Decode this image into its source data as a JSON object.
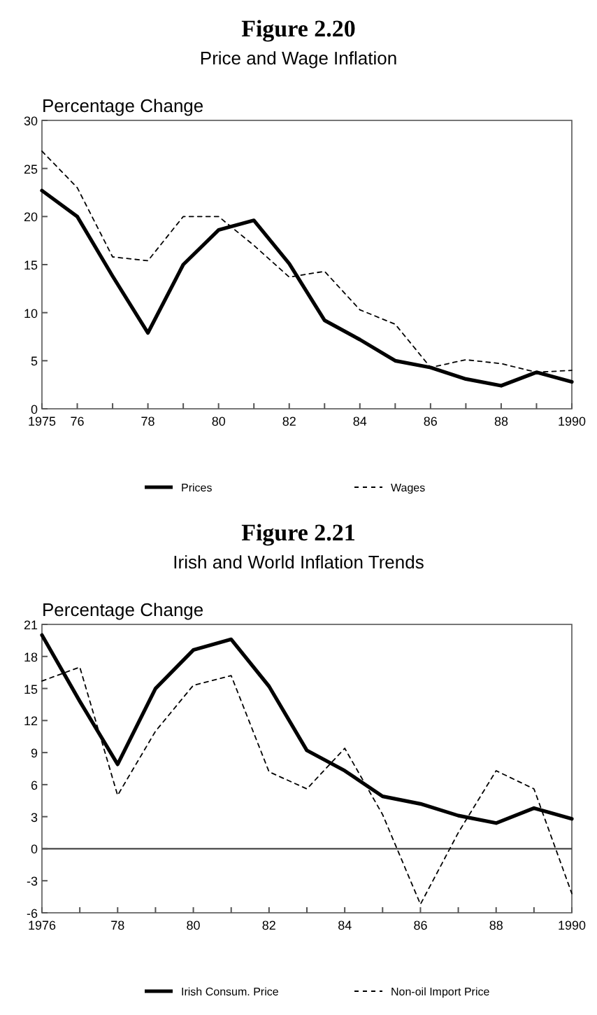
{
  "chart_data": [
    {
      "type": "line",
      "title": "Figure 2.20",
      "subtitle": "Price and Wage Inflation",
      "ylabel": "Percentage Change",
      "x": [
        1975,
        1976,
        1977,
        1978,
        1979,
        1980,
        1981,
        1982,
        1983,
        1984,
        1985,
        1986,
        1987,
        1988,
        1989,
        1990
      ],
      "series": [
        {
          "name": "Prices",
          "color": "#000000",
          "line_style": "solid",
          "values": [
            22.7,
            20.0,
            13.8,
            7.9,
            15.0,
            18.6,
            19.6,
            15.1,
            9.2,
            7.2,
            5.0,
            4.3,
            3.1,
            2.4,
            3.8,
            2.8
          ]
        },
        {
          "name": "Wages",
          "color": "#000000",
          "line_style": "dashed",
          "values": [
            26.8,
            23.0,
            15.8,
            15.4,
            20.0,
            20.0,
            17.0,
            13.7,
            14.3,
            10.3,
            8.8,
            4.3,
            5.1,
            4.7,
            3.8,
            4.0
          ]
        }
      ],
      "xlim": [
        1975,
        1990
      ],
      "xticks": [
        1975,
        {
          "value": 1976,
          "label": "76"
        },
        {
          "value": 1977,
          "label": null
        },
        {
          "value": 1978,
          "label": "78"
        },
        {
          "value": 1979,
          "label": null
        },
        {
          "value": 1980,
          "label": "80"
        },
        {
          "value": 1981,
          "label": null
        },
        {
          "value": 1982,
          "label": "82"
        },
        {
          "value": 1983,
          "label": null
        },
        {
          "value": 1984,
          "label": "84"
        },
        {
          "value": 1985,
          "label": null
        },
        {
          "value": 1986,
          "label": "86"
        },
        {
          "value": 1987,
          "label": null
        },
        {
          "value": 1988,
          "label": "88"
        },
        {
          "value": 1989,
          "label": null
        },
        1990
      ],
      "ylim": [
        0,
        30
      ],
      "yticks": [
        0,
        5,
        10,
        15,
        20,
        25,
        30
      ],
      "grid": false,
      "legend": "bottom"
    },
    {
      "type": "line",
      "title": "Figure 2.21",
      "subtitle": "Irish and World Inflation Trends",
      "ylabel": "Percentage Change",
      "x": [
        1976,
        1977,
        1978,
        1979,
        1980,
        1981,
        1982,
        1983,
        1984,
        1985,
        1986,
        1987,
        1988,
        1989,
        1990
      ],
      "series": [
        {
          "name": "Irish Consum. Price",
          "color": "#000000",
          "line_style": "solid",
          "values": [
            20.0,
            13.8,
            7.9,
            15.0,
            18.6,
            19.6,
            15.2,
            9.2,
            7.3,
            4.9,
            4.2,
            3.1,
            2.4,
            3.8,
            2.8
          ]
        },
        {
          "name": "Non-oil Import Price",
          "color": "#000000",
          "line_style": "dashed",
          "values": [
            15.7,
            17.0,
            5.0,
            11.0,
            15.3,
            16.2,
            7.2,
            5.6,
            9.4,
            3.2,
            -5.2,
            1.5,
            7.3,
            5.6,
            -4.2
          ]
        }
      ],
      "xlim": [
        1976,
        1990
      ],
      "xticks": [
        1976,
        {
          "value": 1977,
          "label": null
        },
        {
          "value": 1978,
          "label": "78"
        },
        {
          "value": 1979,
          "label": null
        },
        {
          "value": 1980,
          "label": "80"
        },
        {
          "value": 1981,
          "label": null
        },
        {
          "value": 1982,
          "label": "82"
        },
        {
          "value": 1983,
          "label": null
        },
        {
          "value": 1984,
          "label": "84"
        },
        {
          "value": 1985,
          "label": null
        },
        {
          "value": 1986,
          "label": "86"
        },
        {
          "value": 1987,
          "label": null
        },
        {
          "value": 1988,
          "label": "88"
        },
        {
          "value": 1989,
          "label": null
        },
        1990
      ],
      "ylim": [
        -6,
        21
      ],
      "yticks": [
        -6,
        -3,
        0,
        3,
        6,
        9,
        12,
        15,
        18,
        21
      ],
      "ref_lines": [
        {
          "axis": "y",
          "value": 0,
          "color": "#333333"
        }
      ],
      "grid": false,
      "legend": "bottom"
    }
  ]
}
